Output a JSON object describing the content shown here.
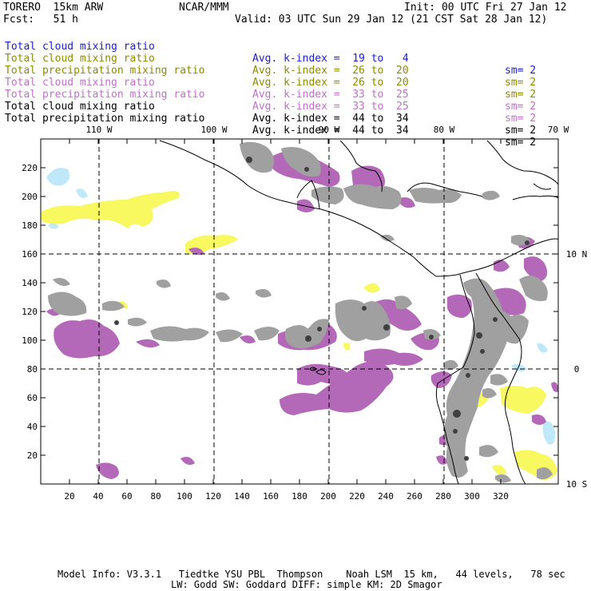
{
  "header": {
    "model": "TORERO  15km ARW",
    "center": "NCAR/MMM",
    "init": "Init: 00 UTC Fri 27 Jan 12",
    "fcst": "Fcst:   51 h",
    "valid": "Valid: 03 UTC Sun 29 Jan 12 (21 CST Sat 28 Jan 12)"
  },
  "legend": [
    {
      "label": "Total cloud mixing ratio",
      "kindex": "Avg. k-index =  19 to   4",
      "sm": "sm= 2",
      "color": "#1c1cd0"
    },
    {
      "label": "Total cloud mixing ratio",
      "kindex": "Avg. k-index =  26 to  20",
      "sm": "sm= 2",
      "color": "#8c8c00"
    },
    {
      "label": "Total precipitation mixing ratio",
      "kindex": "Avg. k-index =  26 to  20",
      "sm": "sm= 2",
      "color": "#8c8c00"
    },
    {
      "label": "Total cloud mixing ratio",
      "kindex": "Avg. k-index =  33 to  25",
      "sm": "sm= 2",
      "color": "#c070c8"
    },
    {
      "label": "Total precipitation mixing ratio",
      "kindex": "Avg. k-index =  33 to  25",
      "sm": "sm= 2",
      "color": "#c070c8"
    },
    {
      "label": "Total cloud mixing ratio",
      "kindex": "Avg. k-index =  44 to  34",
      "sm": "sm= 2",
      "color": "#000000"
    },
    {
      "label": "Total precipitation mixing ratio",
      "kindex": "Avg. k-index =  44 to  34",
      "sm": "sm= 2",
      "color": "#000000"
    }
  ],
  "map": {
    "lon_labels": [
      "110 W",
      "100 W",
      "90 W",
      "80 W",
      "70 W"
    ],
    "lat_labels": [
      "10 N",
      "0",
      "10 S"
    ],
    "x_ticks": [
      "20",
      "40",
      "60",
      "80",
      "100",
      "120",
      "140",
      "160",
      "180",
      "200",
      "220",
      "240",
      "260",
      "280",
      "300",
      "320"
    ],
    "y_ticks": [
      "20",
      "40",
      "60",
      "80",
      "100",
      "120",
      "140",
      "160",
      "180",
      "200",
      "220"
    ],
    "colors": {
      "light_blue": "#bfe8f8",
      "yellow": "#f8f860",
      "purple": "#b468b8",
      "gray": "#a0a0a0",
      "dark_gray": "#404040"
    }
  },
  "footer": {
    "line1": "Model Info: V3.3.1   Tiedtke YSU PBL  Thompson    Noah LSM  15 km,   44 levels,   78 sec",
    "line2": "LW: Godd SW: Goddard DIFF: simple KM: 2D Smagor"
  }
}
